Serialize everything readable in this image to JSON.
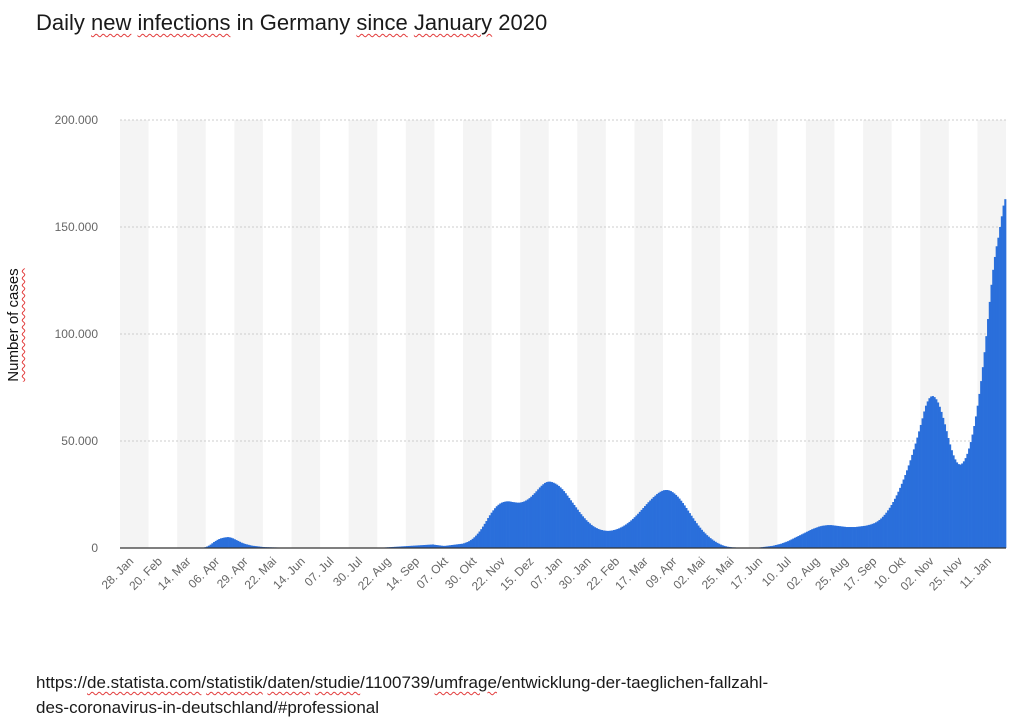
{
  "title_parts": [
    "Daily ",
    "new",
    " ",
    "infections",
    " in Germany ",
    "since",
    " ",
    "January",
    " 2020"
  ],
  "source_line1_parts": [
    "https://",
    "de.statista.com",
    "/",
    "statistik",
    "/",
    "daten",
    "/",
    "studie",
    "/1100739/",
    "umfrage",
    "/entwicklung-der-taeglichen-fallzahl-"
  ],
  "source_line2": "des-coronavirus-in-deutschland/#professional",
  "colors": {
    "bars": "#2a6fdb",
    "band": "#f4f4f4",
    "grid": "#cccccc",
    "axis": "#333333"
  },
  "chart_data": {
    "type": "bar",
    "ylabel": "Number of cases",
    "ylim": [
      0,
      200000
    ],
    "yticks": [
      0,
      50000,
      100000,
      150000,
      200000
    ],
    "ytick_labels": [
      "0",
      "50.000",
      "100.000",
      "150.000",
      "200.000"
    ],
    "grid": true,
    "x_start_date": "2020-01-28",
    "x_end_date": "2022-01-24",
    "xtick_labels": [
      "28. Jan",
      "20. Feb",
      "14. Mar",
      "06. Apr",
      "29. Apr",
      "22. Mai",
      "14. Jun",
      "07. Jul",
      "30. Jul",
      "22. Aug",
      "14. Sep",
      "07. Okt",
      "30. Okt",
      "22. Nov",
      "15. Dez",
      "07. Jan",
      "30. Jan",
      "22. Feb",
      "17. Mar",
      "09. Apr",
      "02. Mai",
      "25. Mai",
      "17. Jun",
      "10. Jul",
      "02. Aug",
      "25. Aug",
      "17. Sep",
      "10. Okt",
      "02. Nov",
      "25. Nov",
      "11. Jan"
    ],
    "series": [
      {
        "values": [
          0,
          0,
          0,
          0,
          0,
          0,
          0,
          0,
          0,
          0,
          0,
          0,
          0,
          0,
          0,
          0,
          0,
          0,
          0,
          0,
          0,
          0,
          0,
          0,
          0,
          0,
          0,
          0,
          0,
          0,
          0,
          0,
          0,
          0,
          0,
          0,
          0,
          0,
          0,
          0,
          0,
          0,
          0,
          0,
          0,
          0,
          0,
          0,
          200,
          400,
          700,
          1100,
          1600,
          2200,
          2800,
          3300,
          3800,
          4200,
          4500,
          4700,
          4900,
          5000,
          5100,
          5000,
          4800,
          4500,
          4100,
          3700,
          3300,
          2900,
          2500,
          2200,
          1900,
          1700,
          1500,
          1300,
          1100,
          1000,
          900,
          800,
          700,
          600,
          500,
          450,
          400,
          380,
          350,
          320,
          300,
          280,
          260,
          240,
          220,
          200,
          180,
          170,
          160,
          150,
          140,
          130,
          120,
          110,
          100,
          100,
          100,
          100,
          100,
          100,
          100,
          100,
          100,
          100,
          100,
          100,
          100,
          100,
          100,
          100,
          100,
          100,
          100,
          100,
          100,
          100,
          100,
          100,
          100,
          100,
          100,
          100,
          100,
          100,
          100,
          100,
          100,
          100,
          100,
          100,
          100,
          100,
          100,
          100,
          100,
          100,
          100,
          100,
          100,
          100,
          100,
          100,
          100,
          100,
          200,
          250,
          300,
          350,
          400,
          450,
          500,
          550,
          600,
          650,
          700,
          750,
          800,
          850,
          900,
          950,
          1000,
          1050,
          1100,
          1150,
          1200,
          1250,
          1300,
          1350,
          1400,
          1450,
          1500,
          1550,
          1600,
          1650,
          1500,
          1400,
          1300,
          1200,
          1100,
          1000,
          1000,
          1100,
          1200,
          1300,
          1400,
          1500,
          1600,
          1700,
          1800,
          1900,
          2000,
          2200,
          2500,
          2800,
          3200,
          3700,
          4300,
          5000,
          5800,
          6700,
          7700,
          8800,
          10000,
          11300,
          12600,
          14000,
          15300,
          16500,
          17600,
          18600,
          19500,
          20200,
          20800,
          21200,
          21500,
          21700,
          21800,
          21800,
          21700,
          21500,
          21400,
          21300,
          21200,
          21200,
          21300,
          21500,
          21800,
          22200,
          22700,
          23300,
          24000,
          24800,
          25600,
          26500,
          27400,
          28300,
          29100,
          29800,
          30400,
          30800,
          31000,
          31000,
          30800,
          30500,
          30100,
          29600,
          29000,
          28300,
          27500,
          26600,
          25600,
          24500,
          23400,
          22300,
          21200,
          20100,
          19000,
          17900,
          16800,
          15800,
          14800,
          13900,
          13000,
          12200,
          11500,
          10800,
          10200,
          9700,
          9300,
          8900,
          8600,
          8400,
          8200,
          8100,
          8000,
          8000,
          8100,
          8200,
          8400,
          8600,
          8900,
          9200,
          9600,
          10000,
          10500,
          11000,
          11600,
          12200,
          12900,
          13600,
          14400,
          15200,
          16000,
          16900,
          17800,
          18700,
          19600,
          20500,
          21400,
          22200,
          23000,
          23800,
          24500,
          25200,
          25800,
          26300,
          26700,
          27000,
          27100,
          27100,
          26900,
          26600,
          26100,
          25500,
          24800,
          24000,
          23100,
          22100,
          21000,
          19900,
          18700,
          17500,
          16300,
          15100,
          13900,
          12700,
          11600,
          10500,
          9500,
          8500,
          7600,
          6800,
          6000,
          5300,
          4600,
          4000,
          3400,
          2900,
          2400,
          2000,
          1600,
          1300,
          1000,
          800,
          600,
          500,
          400,
          300,
          300,
          200,
          200,
          200,
          200,
          200,
          200,
          200,
          200,
          200,
          200,
          200,
          200,
          200,
          200,
          300,
          400,
          500,
          600,
          700,
          800,
          900,
          1000,
          1200,
          1400,
          1600,
          1800,
          2000,
          2300,
          2600,
          2900,
          3200,
          3600,
          4000,
          4400,
          4800,
          5200,
          5600,
          6000,
          6400,
          6800,
          7200,
          7600,
          8000,
          8400,
          8800,
          9100,
          9400,
          9700,
          10000,
          10200,
          10400,
          10500,
          10600,
          10700,
          10700,
          10700,
          10600,
          10500,
          10400,
          10300,
          10200,
          10100,
          10000,
          9900,
          9800,
          9800,
          9800,
          9800,
          9800,
          9800,
          9900,
          10000,
          10100,
          10200,
          10300,
          10400,
          10600,
          10800,
          11000,
          11300,
          11600,
          12000,
          12500,
          13100,
          13800,
          14600,
          15500,
          16500,
          17600,
          18800,
          20100,
          21500,
          23000,
          24600,
          26300,
          28100,
          30000,
          32000,
          34100,
          36300,
          38600,
          41000,
          43500,
          46100,
          48800,
          51600,
          54500,
          57500,
          60600,
          63800,
          66500,
          68500,
          70000,
          70800,
          71000,
          70500,
          69500,
          68000,
          66000,
          63600,
          60800,
          57800,
          54600,
          51400,
          48400,
          45700,
          43300,
          41400,
          40000,
          39200,
          39000,
          39500,
          40500,
          42000,
          44000,
          46500,
          49500,
          53000,
          57000,
          61500,
          66500,
          72000,
          78000,
          84500,
          91500,
          99000,
          107000,
          115000,
          123000,
          130000,
          136000,
          141000,
          145000,
          150000,
          155000,
          160000,
          163000
        ]
      }
    ]
  }
}
